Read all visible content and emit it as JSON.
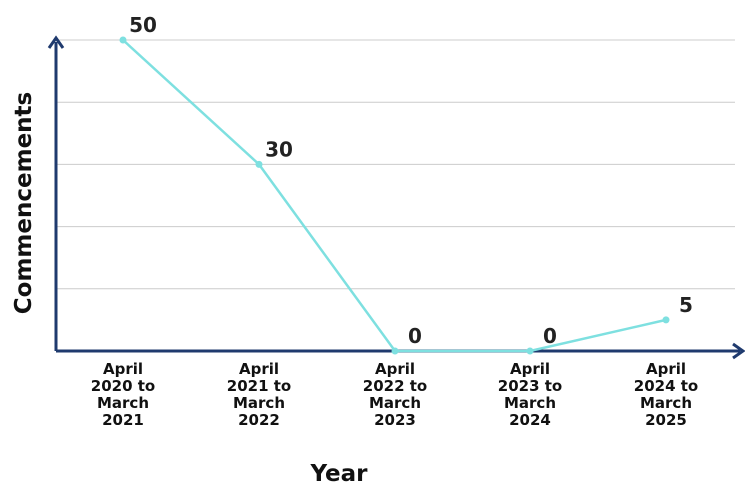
{
  "chart_data": {
    "type": "line",
    "title": "",
    "xlabel": "Year",
    "ylabel": "Commencements",
    "categories": [
      [
        "April",
        "2020 to",
        "March",
        "2021"
      ],
      [
        "April",
        "2021 to",
        "March",
        "2022"
      ],
      [
        "April",
        "2022 to",
        "March",
        "2023"
      ],
      [
        "April",
        "2023 to",
        "March",
        "2024"
      ],
      [
        "April",
        "2024 to",
        "March",
        "2025"
      ]
    ],
    "values": [
      50,
      30,
      0,
      0,
      5
    ],
    "data_labels": [
      "50",
      "30",
      "0",
      "0",
      "5"
    ],
    "ylim": [
      0,
      50
    ],
    "gridline_values": [
      10,
      20,
      30,
      40,
      50
    ],
    "y_tick_labels_shown": false,
    "grid": true,
    "legend": "none",
    "colors": {
      "series": "#7ee0e0",
      "axis": "#1f3a6e",
      "grid": "#cccccc"
    }
  }
}
